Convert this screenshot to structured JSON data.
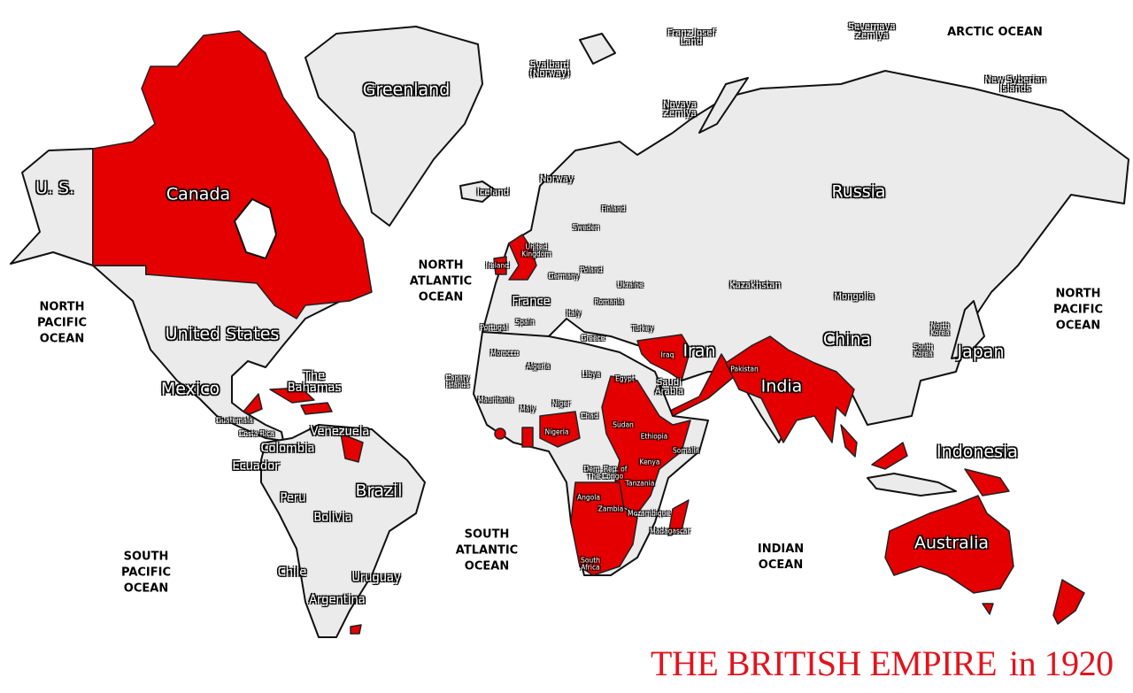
{
  "title": {
    "main": "THE BRITISH EMPIRE",
    "year": "in 1920"
  },
  "colors": {
    "british_empire": "#e40000",
    "other_land": "#ebebeb",
    "water": "#ffffff",
    "title": "#e0141e"
  },
  "oceans": [
    "ARCTIC OCEAN",
    "NORTH\nPACIFIC\nOCEAN",
    "NORTH\nPACIFIC\nOCEAN",
    "NORTH\nATLANTIC\nOCEAN",
    "SOUTH\nATLANTIC\nOCEAN",
    "INDIAN\nOCEAN",
    "SOUTH\nPACIFIC\nOCEAN"
  ],
  "labels": [
    "Greenland",
    "Canada",
    "U. S.",
    "United States",
    "Mexico",
    "The\nBahamas",
    "Guatemala",
    "Costa Rica",
    "Venezuela",
    "Colombia",
    "Ecuador",
    "Brazil",
    "Peru",
    "Bolivia",
    "Chile",
    "Uruguay",
    "Argentina",
    "Iceland",
    "Norway",
    "Svalbard\n(Norway)",
    "Franz Josef\nLand",
    "Novaya\nZemlya",
    "Severnaya\nZemlya",
    "Finland",
    "Sweden",
    "United\nKingdom",
    "Ireland",
    "Germany",
    "Poland",
    "Ukraine",
    "France",
    "Romania",
    "Italy",
    "Spain",
    "Portugal",
    "Turkey",
    "Greece",
    "Morocco",
    "Algeria",
    "Libya",
    "Egypt",
    "Iraq",
    "Iran",
    "Saudi\nArabia",
    "Canary\nIslands",
    "Mauritania",
    "Maly",
    "Niger",
    "Chad",
    "Sudan",
    "Nigeria",
    "Ethiopia",
    "Somalia",
    "Kenya",
    "Dem. Rep. of\nThe Congo",
    "Tanzania",
    "Angola",
    "Zambia",
    "Mozambique",
    "Madagascar",
    "South\nAfrica",
    "Russia",
    "Kazakhstan",
    "Mongolia",
    "China",
    "North\nKorea",
    "South\nKorea",
    "Japan",
    "Pakistan",
    "India",
    "Indonesia",
    "Australia",
    "New Syberian\nIslands"
  ]
}
